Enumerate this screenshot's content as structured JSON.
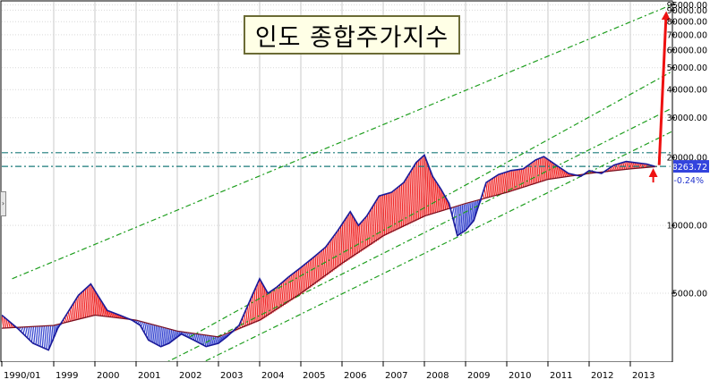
{
  "chart_data": {
    "type": "line",
    "title": "인도 종합주가지수",
    "x_tick_labels": [
      "1990/01",
      "1999",
      "2000",
      "2001",
      "2002",
      "2003",
      "2004",
      "2005",
      "2006",
      "2007",
      "2008",
      "2009",
      "2010",
      "2011",
      "2012",
      "2013"
    ],
    "y_scale": "log",
    "y_tick_labels": [
      "95000.00",
      "90000.00",
      "80000.00",
      "70000.00",
      "60000.00",
      "50000.00",
      "40000.00",
      "30000.00",
      "20000.00",
      "10000.00",
      "5000.00"
    ],
    "y_tick_values": [
      95000,
      90000,
      80000,
      70000,
      60000,
      50000,
      40000,
      30000,
      20000,
      10000,
      5000
    ],
    "ylim": [
      2500,
      98000
    ],
    "last_value_label": "18263.72",
    "last_value": 18263.72,
    "change_label": "-0.24%",
    "index_series": {
      "x": [
        1998.0,
        1998.3,
        1998.6,
        1998.9,
        1999.1,
        1999.3,
        1999.6,
        1999.9,
        2000.1,
        2000.3,
        2000.6,
        2000.9,
        2001.1,
        2001.3,
        2001.6,
        2001.8,
        2002.1,
        2002.4,
        2002.7,
        2003.0,
        2003.2,
        2003.5,
        2003.8,
        2004.0,
        2004.2,
        2004.4,
        2004.7,
        2005.0,
        2005.3,
        2005.6,
        2005.9,
        2006.2,
        2006.4,
        2006.6,
        2006.9,
        2007.2,
        2007.5,
        2007.8,
        2008.0,
        2008.2,
        2008.4,
        2008.6,
        2008.8,
        2009.0,
        2009.2,
        2009.5,
        2009.8,
        2010.1,
        2010.4,
        2010.7,
        2010.9,
        2011.2,
        2011.5,
        2011.8,
        2012.0,
        2012.3,
        2012.6,
        2012.9,
        2013.1,
        2013.4,
        2013.6
      ],
      "y": [
        4000,
        3500,
        3000,
        2800,
        3500,
        4000,
        4900,
        5500,
        4800,
        4200,
        4000,
        3800,
        3600,
        3100,
        2900,
        3000,
        3300,
        3100,
        2900,
        3000,
        3200,
        3600,
        4800,
        5800,
        5000,
        5300,
        5900,
        6500,
        7200,
        8000,
        9500,
        11500,
        10000,
        11000,
        13500,
        14000,
        15500,
        19000,
        20500,
        16500,
        14500,
        12500,
        9000,
        9500,
        10500,
        15500,
        16800,
        17500,
        17800,
        19500,
        20200,
        18500,
        17000,
        16500,
        17500,
        17000,
        18500,
        19200,
        19000,
        18700,
        18263.72
      ]
    },
    "moving_average_series": {
      "x": [
        1998.0,
        1999.0,
        2000.0,
        2001.0,
        2002.0,
        2003.0,
        2004.0,
        2005.0,
        2006.0,
        2007.0,
        2008.0,
        2009.0,
        2010.0,
        2011.0,
        2012.0,
        2013.0,
        2013.6
      ],
      "y": [
        3500,
        3600,
        4000,
        3800,
        3400,
        3200,
        3800,
        5000,
        6800,
        9000,
        11000,
        12500,
        14000,
        16000,
        17000,
        17800,
        18200
      ]
    },
    "channel_lines": [
      {
        "style": "dash-dot",
        "color": "#1e9e1e",
        "x": [
          1998.2,
          2014.0
        ],
        "y": [
          5800,
          95000
        ]
      },
      {
        "style": "dash-dot",
        "color": "#1e9e1e",
        "x": [
          2002.3,
          2014.0
        ],
        "y": [
          3200,
          48000
        ]
      },
      {
        "style": "dash-dot",
        "color": "#1e9e1e",
        "x": [
          2001.6,
          2014.0
        ],
        "y": [
          2400,
          33000
        ]
      },
      {
        "style": "dash-dot",
        "color": "#1e9e1e",
        "x": [
          2001.6,
          2014.0
        ],
        "y": [
          2000,
          26000
        ]
      }
    ],
    "horizontal_levels": [
      21000,
      18263.72
    ],
    "forecast_arrow": {
      "x": [
        2013.7,
        2014.0
      ],
      "y": [
        18500,
        90000
      ],
      "color": "#ee1111"
    },
    "grid": true
  }
}
